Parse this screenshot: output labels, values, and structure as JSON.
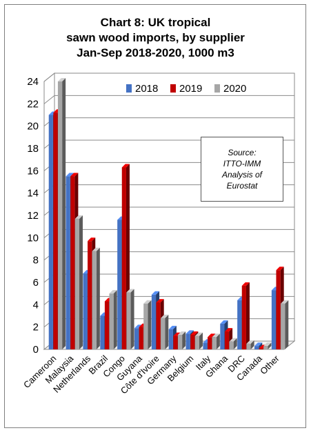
{
  "chart_data": {
    "type": "bar",
    "title": "Chart 8: UK tropical\nsawn wood imports, by supplier\nJan-Sep 2018-2020, 1000 m3",
    "categories": [
      "Cameroon",
      "Malaysia",
      "Netherlands",
      "Brazil",
      "Congo",
      "Guyana",
      "Côte d'Ivoire",
      "Germany",
      "Belgium",
      "Italy",
      "Ghana",
      "DRC",
      "Canada",
      "Other"
    ],
    "series": [
      {
        "name": "2018",
        "color": "#4472c4",
        "values": [
          21.0,
          15.5,
          6.8,
          3.0,
          11.6,
          1.9,
          4.9,
          1.8,
          1.4,
          0.6,
          2.3,
          4.4,
          0.3,
          5.3
        ]
      },
      {
        "name": "2019",
        "color": "#c00000",
        "values": [
          21.2,
          15.5,
          9.7,
          4.3,
          16.3,
          2.0,
          4.2,
          1.2,
          1.3,
          1.1,
          1.6,
          5.7,
          0.1,
          7.1
        ]
      },
      {
        "name": "2020",
        "color": "#a6a6a6",
        "values": [
          24.0,
          11.7,
          8.8,
          5.0,
          5.1,
          4.1,
          2.8,
          1.3,
          1.2,
          1.1,
          0.7,
          0.5,
          0.3,
          4.1
        ]
      }
    ],
    "ylim": [
      0,
      24
    ],
    "yticks": [
      "0",
      "2",
      "4",
      "6",
      "8",
      "10",
      "12",
      "14",
      "16",
      "18",
      "20",
      "22",
      "24"
    ],
    "grid": true,
    "legend_position": "top-right",
    "annotation": "Source:\nITTO-IMM\nAnalysis of\nEurostat"
  }
}
